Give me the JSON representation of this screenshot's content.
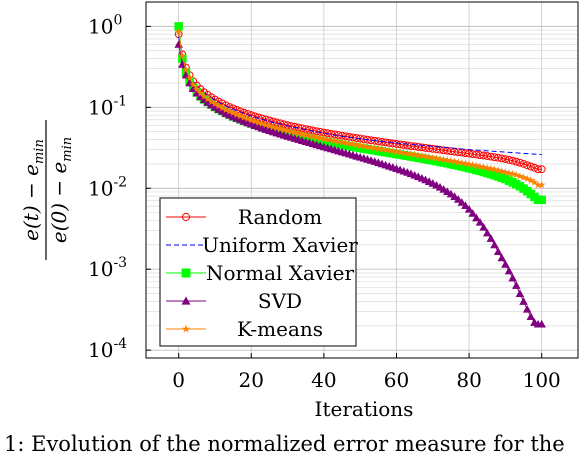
{
  "chart_data": {
    "type": "line",
    "x_scale": "linear",
    "y_scale": "log",
    "xlabel": "Iterations",
    "ylabel": "(e(t) − e_min)/(e(0) − e_min)",
    "xlim": [
      -9,
      110
    ],
    "ylim": [
      8e-05,
      2.0
    ],
    "x_ticks": [
      0,
      20,
      40,
      60,
      80,
      100
    ],
    "y_ticks": [
      {
        "value": 1,
        "label": "10^0"
      },
      {
        "value": 0.1,
        "label": "10^-1"
      },
      {
        "value": 0.01,
        "label": "10^-2"
      },
      {
        "value": 0.001,
        "label": "10^-3"
      },
      {
        "value": 0.0001,
        "label": "10^-4"
      }
    ],
    "grid": true,
    "legend_position": "bottom-left",
    "x": [
      0,
      1,
      2,
      3,
      4,
      5,
      6,
      7,
      8,
      9,
      10,
      11,
      12,
      13,
      14,
      15,
      16,
      17,
      18,
      19,
      20,
      21,
      22,
      23,
      24,
      25,
      26,
      27,
      28,
      29,
      30,
      31,
      32,
      33,
      34,
      35,
      36,
      37,
      38,
      39,
      40,
      41,
      42,
      43,
      44,
      45,
      46,
      47,
      48,
      49,
      50,
      51,
      52,
      53,
      54,
      55,
      56,
      57,
      58,
      59,
      60,
      61,
      62,
      63,
      64,
      65,
      66,
      67,
      68,
      69,
      70,
      71,
      72,
      73,
      74,
      75,
      76,
      77,
      78,
      79,
      80,
      81,
      82,
      83,
      84,
      85,
      86,
      87,
      88,
      89,
      90,
      91,
      92,
      93,
      94,
      95,
      96,
      97,
      98,
      99,
      100
    ],
    "series": [
      {
        "name": "Random",
        "color": "#ff0000",
        "marker": "circle-open",
        "line": "solid",
        "values": [
          0.8,
          0.45,
          0.31,
          0.25,
          0.21,
          0.186,
          0.168,
          0.154,
          0.143,
          0.133,
          0.125,
          0.118,
          0.112,
          0.106,
          0.101,
          0.097,
          0.093,
          0.089,
          0.086,
          0.083,
          0.08,
          0.0775,
          0.075,
          0.0728,
          0.0707,
          0.0688,
          0.0669,
          0.0651,
          0.0634,
          0.0618,
          0.0603,
          0.0588,
          0.0575,
          0.0562,
          0.055,
          0.0538,
          0.0527,
          0.0516,
          0.0506,
          0.0497,
          0.0488,
          0.0479,
          0.047,
          0.0462,
          0.0454,
          0.0446,
          0.0439,
          0.0431,
          0.0424,
          0.0417,
          0.0411,
          0.0404,
          0.0398,
          0.0392,
          0.0386,
          0.038,
          0.0374,
          0.0369,
          0.0363,
          0.0358,
          0.0353,
          0.0348,
          0.0343,
          0.0338,
          0.0333,
          0.0329,
          0.0324,
          0.032,
          0.0315,
          0.0311,
          0.0307,
          0.0303,
          0.0299,
          0.0295,
          0.0291,
          0.0287,
          0.0283,
          0.0279,
          0.0276,
          0.0272,
          0.0268,
          0.0264,
          0.0261,
          0.0257,
          0.0254,
          0.025,
          0.0246,
          0.0242,
          0.0238,
          0.0234,
          0.0229,
          0.0224,
          0.0219,
          0.0213,
          0.0207,
          0.02,
          0.0193,
          0.0186,
          0.0179,
          0.0172,
          0.0172
        ]
      },
      {
        "name": "Uniform Xavier",
        "color": "#0000ff",
        "marker": "none",
        "line": "dashed",
        "values": [
          0.75,
          0.42,
          0.3,
          0.24,
          0.205,
          0.18,
          0.163,
          0.15,
          0.139,
          0.13,
          0.122,
          0.115,
          0.109,
          0.104,
          0.099,
          0.095,
          0.091,
          0.087,
          0.084,
          0.081,
          0.078,
          0.0755,
          0.073,
          0.071,
          0.069,
          0.067,
          0.065,
          0.0635,
          0.062,
          0.0605,
          0.059,
          0.0576,
          0.0563,
          0.0551,
          0.0539,
          0.0528,
          0.0517,
          0.0507,
          0.0497,
          0.0488,
          0.0479,
          0.047,
          0.0462,
          0.0454,
          0.0446,
          0.0439,
          0.0432,
          0.0426,
          0.042,
          0.0414,
          0.0408,
          0.0403,
          0.0398,
          0.0393,
          0.0388,
          0.0383,
          0.0379,
          0.0375,
          0.0371,
          0.0367,
          0.0363,
          0.0359,
          0.0355,
          0.0352,
          0.0348,
          0.0345,
          0.0342,
          0.0339,
          0.0336,
          0.0333,
          0.033,
          0.0327,
          0.0324,
          0.0321,
          0.0318,
          0.0315,
          0.0312,
          0.0309,
          0.0306,
          0.0303,
          0.03,
          0.0298,
          0.0296,
          0.0294,
          0.0292,
          0.029,
          0.0288,
          0.0286,
          0.0284,
          0.0282,
          0.028,
          0.0278,
          0.0276,
          0.0274,
          0.0272,
          0.027,
          0.0268,
          0.0266,
          0.0264,
          0.0262,
          0.026
        ]
      },
      {
        "name": "Normal Xavier",
        "color": "#00ff00",
        "marker": "square",
        "line": "solid",
        "values": [
          1.0,
          0.4,
          0.27,
          0.21,
          0.175,
          0.153,
          0.137,
          0.125,
          0.116,
          0.108,
          0.101,
          0.095,
          0.09,
          0.085,
          0.081,
          0.077,
          0.074,
          0.071,
          0.068,
          0.066,
          0.063,
          0.061,
          0.0592,
          0.0574,
          0.0557,
          0.0541,
          0.0526,
          0.0512,
          0.0499,
          0.0486,
          0.0474,
          0.0462,
          0.0451,
          0.0441,
          0.0431,
          0.0421,
          0.0412,
          0.0403,
          0.0395,
          0.0387,
          0.0379,
          0.0372,
          0.0365,
          0.0358,
          0.0351,
          0.0345,
          0.0338,
          0.0332,
          0.0326,
          0.032,
          0.0315,
          0.0309,
          0.0304,
          0.0299,
          0.0294,
          0.0289,
          0.0284,
          0.0279,
          0.0274,
          0.027,
          0.0265,
          0.0261,
          0.0256,
          0.0252,
          0.0247,
          0.0243,
          0.0238,
          0.0234,
          0.023,
          0.0225,
          0.0221,
          0.0217,
          0.0212,
          0.0208,
          0.0204,
          0.0199,
          0.0195,
          0.0191,
          0.0186,
          0.0182,
          0.0177,
          0.0173,
          0.0168,
          0.0164,
          0.0159,
          0.0154,
          0.015,
          0.0145,
          0.014,
          0.0135,
          0.013,
          0.0124,
          0.0118,
          0.0112,
          0.0106,
          0.0099,
          0.0092,
          0.0085,
          0.0078,
          0.0072,
          0.0072
        ]
      },
      {
        "name": "SVD",
        "color": "#800080",
        "marker": "triangle",
        "line": "solid",
        "values": [
          0.6,
          0.34,
          0.25,
          0.2,
          0.17,
          0.15,
          0.135,
          0.124,
          0.115,
          0.107,
          0.1,
          0.094,
          0.089,
          0.084,
          0.08,
          0.076,
          0.073,
          0.07,
          0.067,
          0.064,
          0.062,
          0.0595,
          0.0573,
          0.0552,
          0.0533,
          0.0515,
          0.0498,
          0.0482,
          0.0467,
          0.0452,
          0.0438,
          0.0425,
          0.0412,
          0.04,
          0.0388,
          0.0377,
          0.0366,
          0.0355,
          0.0345,
          0.0335,
          0.0325,
          0.0316,
          0.0307,
          0.0298,
          0.0289,
          0.0281,
          0.0273,
          0.0265,
          0.0257,
          0.0249,
          0.0242,
          0.0235,
          0.0228,
          0.0221,
          0.0214,
          0.0207,
          0.02,
          0.0194,
          0.0187,
          0.0181,
          0.0175,
          0.0169,
          0.0163,
          0.0157,
          0.0151,
          0.0145,
          0.0139,
          0.0133,
          0.0127,
          0.0121,
          0.0115,
          0.0109,
          0.0103,
          0.0097,
          0.0091,
          0.0085,
          0.0079,
          0.0073,
          0.0067,
          0.0061,
          0.0055,
          0.0049,
          0.0043,
          0.0038,
          0.0033,
          0.0028,
          0.0024,
          0.002,
          0.00165,
          0.00138,
          0.00115,
          0.00095,
          0.00078,
          0.00063,
          0.0005,
          0.0004,
          0.00032,
          0.00026,
          0.00022,
          0.00021,
          0.00021
        ]
      },
      {
        "name": "K-means",
        "color": "#ff8000",
        "marker": "star",
        "line": "solid",
        "values": [
          0.85,
          0.43,
          0.29,
          0.23,
          0.19,
          0.166,
          0.149,
          0.136,
          0.126,
          0.117,
          0.11,
          0.104,
          0.098,
          0.093,
          0.089,
          0.085,
          0.081,
          0.078,
          0.075,
          0.072,
          0.069,
          0.0668,
          0.0646,
          0.0626,
          0.0607,
          0.0589,
          0.0572,
          0.0556,
          0.0541,
          0.0527,
          0.0513,
          0.05,
          0.0488,
          0.0477,
          0.0466,
          0.0455,
          0.0445,
          0.0435,
          0.0426,
          0.0417,
          0.0408,
          0.04,
          0.0392,
          0.0384,
          0.0377,
          0.037,
          0.0363,
          0.0356,
          0.035,
          0.0343,
          0.0337,
          0.0331,
          0.0325,
          0.0319,
          0.0314,
          0.0308,
          0.0303,
          0.0298,
          0.0293,
          0.0288,
          0.0283,
          0.0278,
          0.0273,
          0.0269,
          0.0264,
          0.026,
          0.0255,
          0.0251,
          0.0247,
          0.0242,
          0.0238,
          0.0234,
          0.023,
          0.0226,
          0.0222,
          0.0218,
          0.0214,
          0.021,
          0.0206,
          0.0202,
          0.0198,
          0.0194,
          0.019,
          0.0186,
          0.0182,
          0.0178,
          0.0174,
          0.017,
          0.0166,
          0.0162,
          0.0158,
          0.0154,
          0.015,
          0.0146,
          0.0141,
          0.0136,
          0.0131,
          0.0125,
          0.0118,
          0.011,
          0.011
        ]
      }
    ]
  },
  "caption_text": "1: Evolution of the normalized error measure for the"
}
